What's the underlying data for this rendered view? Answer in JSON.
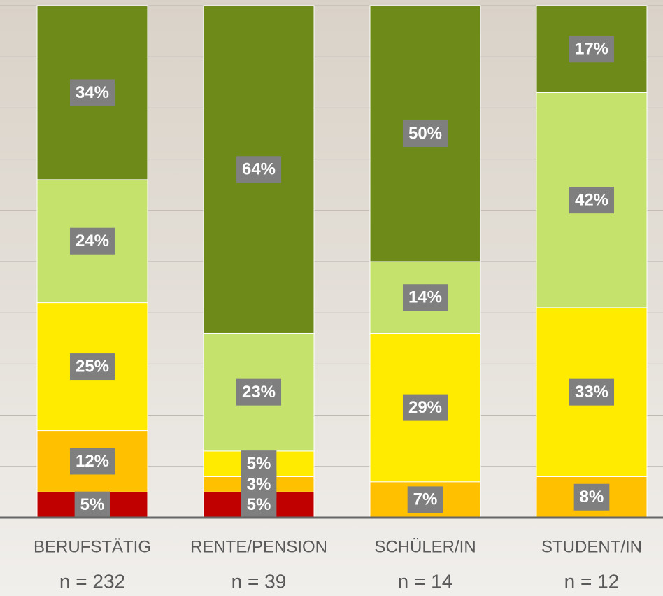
{
  "chart_data": {
    "type": "stacked_bar",
    "categories": [
      "BERUFSTÄTIG",
      "RENTE/PENSION",
      "SCHÜLER/IN",
      "STUDENT/IN"
    ],
    "sample_sizes": [
      "n = 232",
      "n = 39",
      "n = 14",
      "n = 12"
    ],
    "series": [
      {
        "color": "#c00000",
        "values": [
          5,
          5,
          null,
          null
        ],
        "value_labels": [
          "5%",
          "5%",
          null,
          null
        ]
      },
      {
        "color": "#ffc000",
        "values": [
          12,
          3,
          7,
          8
        ],
        "value_labels": [
          "12%",
          "3%",
          "7%",
          "8%"
        ]
      },
      {
        "color": "#ffeb00",
        "values": [
          25,
          5,
          29,
          33
        ],
        "value_labels": [
          "25%",
          "5%",
          "29%",
          "33%"
        ]
      },
      {
        "color": "#c5e26c",
        "values": [
          24,
          23,
          14,
          42
        ],
        "value_labels": [
          "24%",
          "23%",
          "14%",
          "42%"
        ]
      },
      {
        "color": "#6e8b1a",
        "values": [
          34,
          64,
          50,
          17
        ],
        "value_labels": [
          "34%",
          "64%",
          "50%",
          "17%"
        ]
      }
    ],
    "ylim": [
      0,
      100
    ],
    "yticks": [
      0,
      10,
      20,
      30,
      40,
      50,
      60,
      70,
      80,
      90,
      100
    ],
    "grid": true
  }
}
